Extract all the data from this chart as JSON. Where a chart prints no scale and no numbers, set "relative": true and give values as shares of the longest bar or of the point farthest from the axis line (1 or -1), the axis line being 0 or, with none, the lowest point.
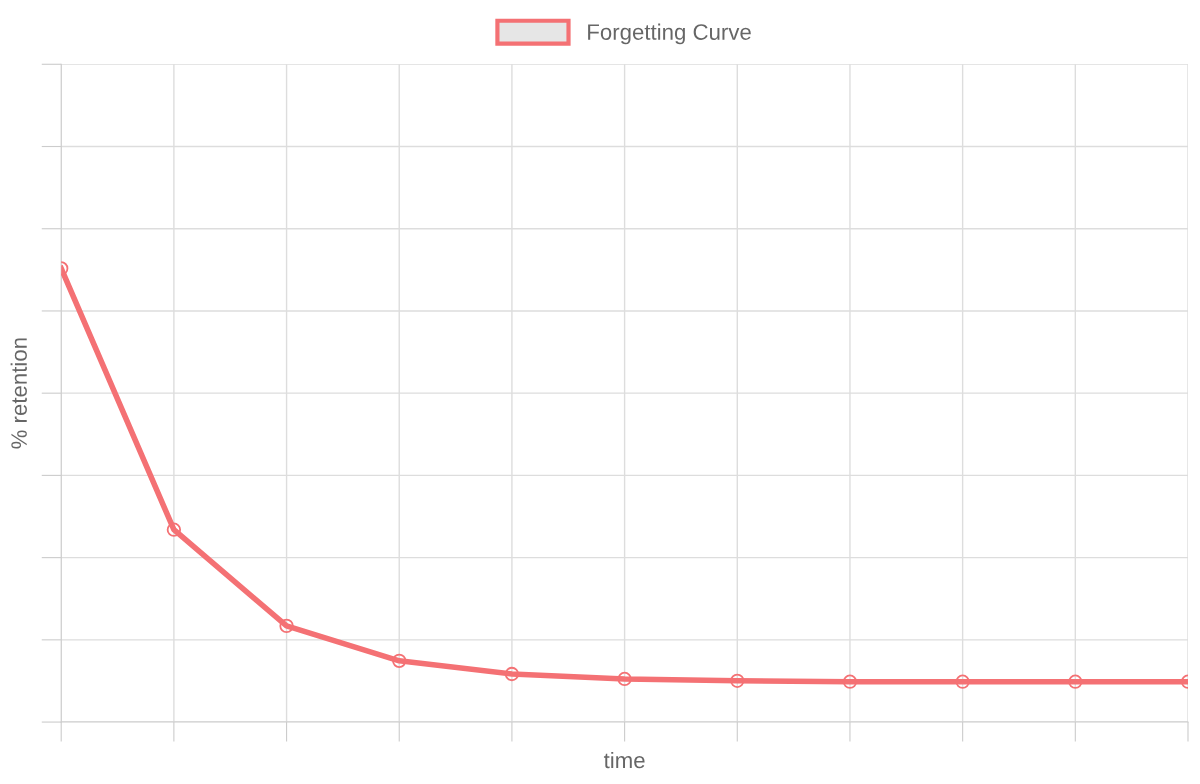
{
  "chart_data": {
    "type": "line",
    "relative": true,
    "xlabel": "time",
    "ylabel": "% retention",
    "categories": [
      null,
      null,
      null,
      null,
      null,
      null,
      null,
      null,
      null,
      null,
      null
    ],
    "series": [
      {
        "name": "Forgetting Curve",
        "color": "#f47174",
        "values": [
          1,
          0.424,
          0.212,
          0.135,
          0.106,
          0.095,
          0.091,
          0.089,
          0.089,
          0.089,
          0.089
        ]
      }
    ],
    "grid": true,
    "legend": "top",
    "marker": "circle",
    "line_style": "solid"
  }
}
